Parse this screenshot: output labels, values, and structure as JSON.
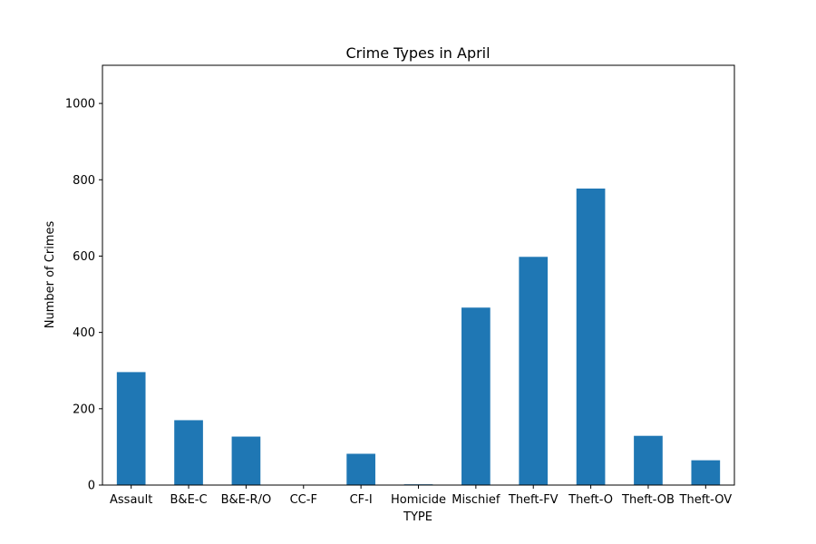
{
  "chart_data": {
    "type": "bar",
    "title": "Crime Types in April",
    "xlabel": "TYPE",
    "ylabel": "Number of Crimes",
    "categories": [
      "Assault",
      "B&E-C",
      "B&E-R/O",
      "CC-F",
      "CF-I",
      "Homicide",
      "Mischief",
      "Theft-FV",
      "Theft-O",
      "Theft-OB",
      "Theft-OV"
    ],
    "values": [
      296,
      170,
      127,
      0,
      82,
      2,
      465,
      598,
      777,
      129,
      65
    ],
    "ylim": [
      0,
      1100
    ],
    "yticks": [
      0,
      200,
      400,
      600,
      800,
      1000
    ],
    "grid": false,
    "legend": "none",
    "bar_color": "#1f77b4"
  }
}
